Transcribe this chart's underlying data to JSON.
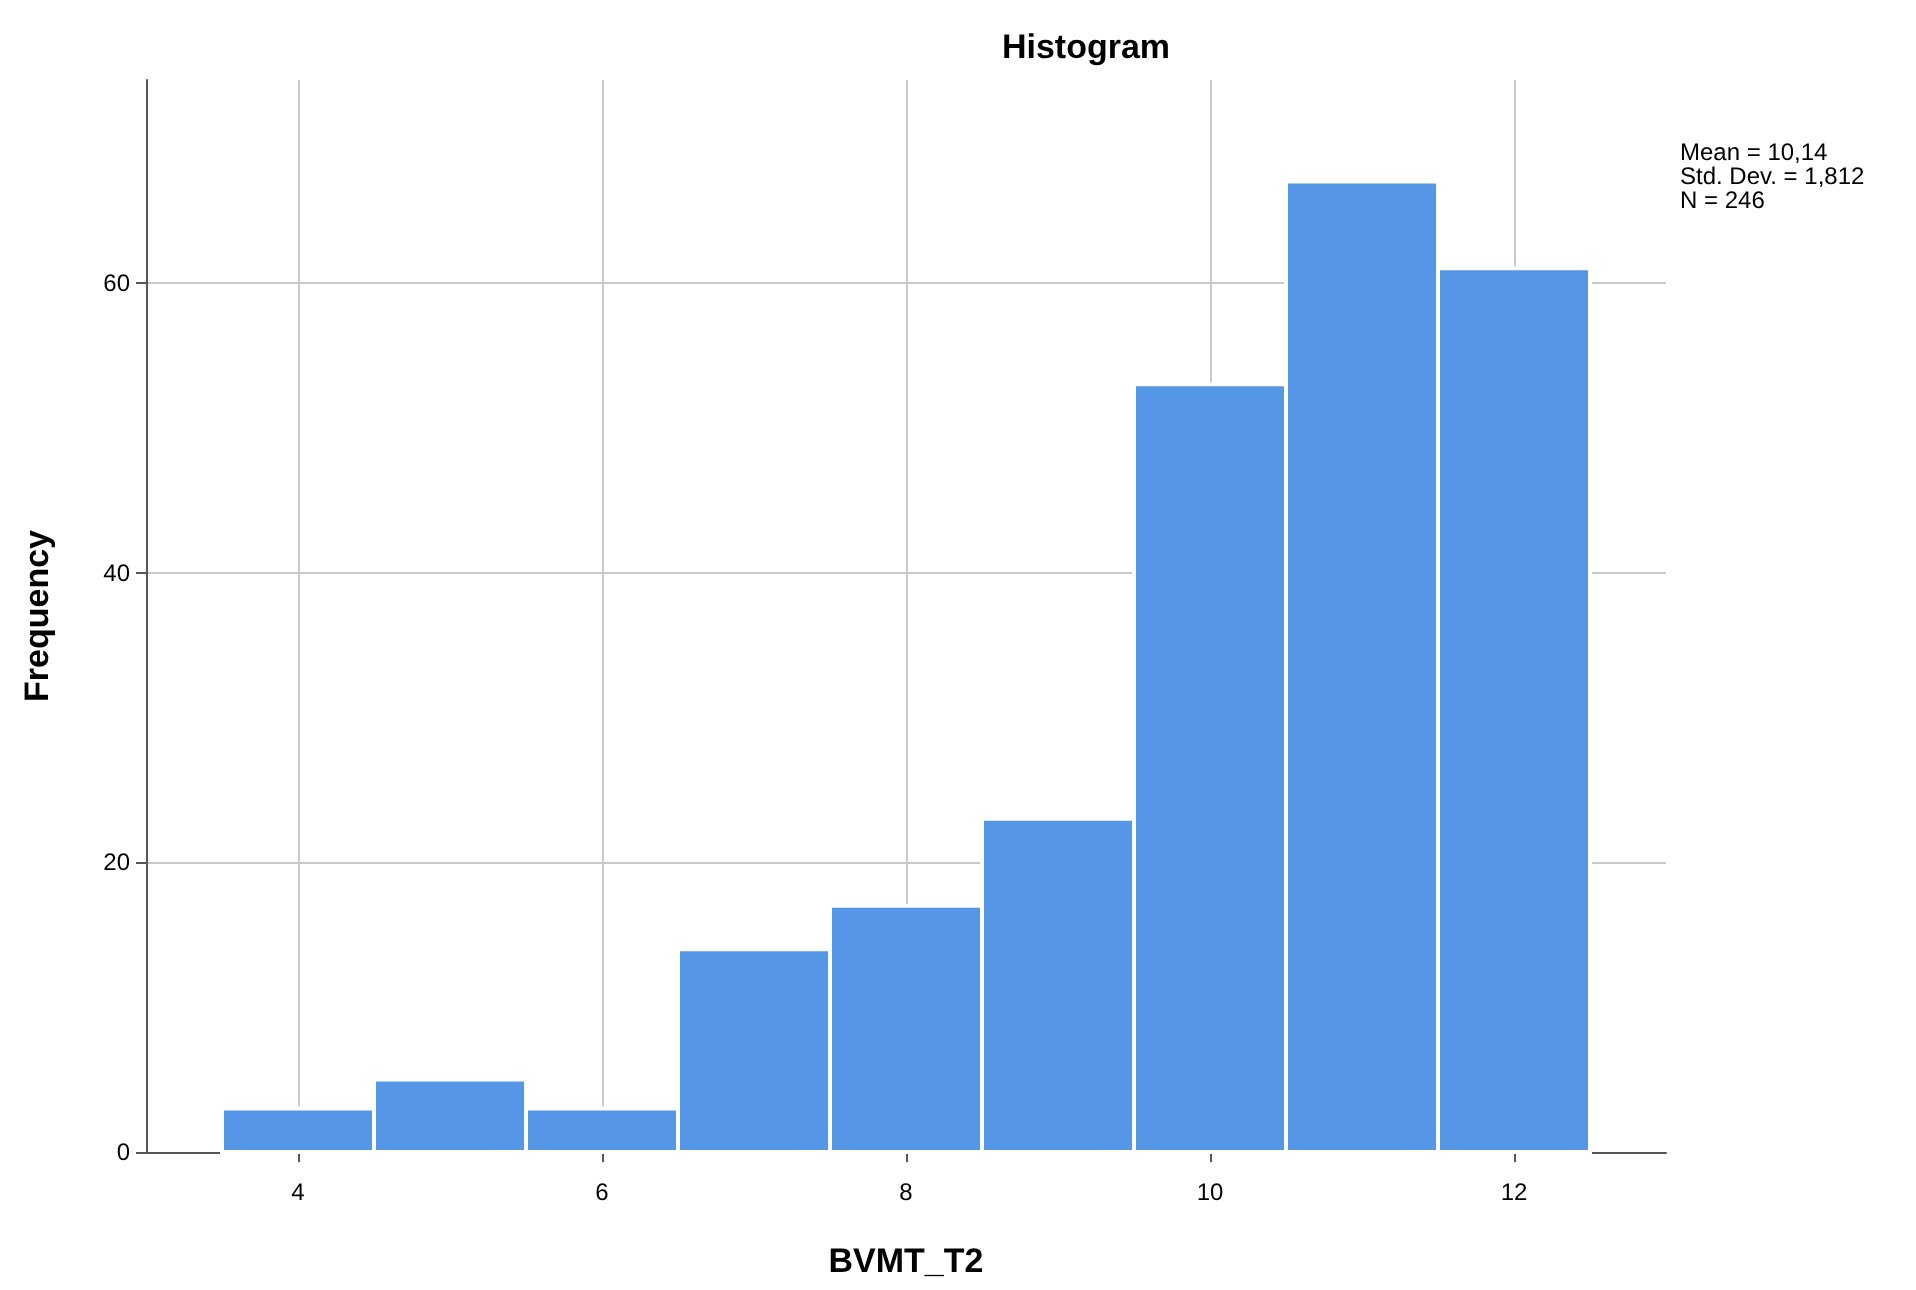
{
  "chart_data": {
    "type": "histogram",
    "title": "Histogram",
    "xlabel": "BVMT_T2",
    "ylabel": "Frequency",
    "bins": [
      3.5,
      4.5,
      5.5,
      6.5,
      7.5,
      8.5,
      9.5,
      10.5,
      11.5,
      12.5
    ],
    "values": [
      3,
      5,
      3,
      14,
      17,
      23,
      53,
      67,
      61
    ],
    "color": "#5596e6",
    "xlim": [
      3,
      13
    ],
    "xticks": [
      4,
      6,
      8,
      10,
      12
    ],
    "ylim": [
      0,
      74
    ],
    "yticks": [
      0,
      20,
      40,
      60
    ],
    "grid": true,
    "annotations": [
      "Mean = 10,14",
      "Std. Dev. = 1,812",
      "N = 246"
    ]
  }
}
